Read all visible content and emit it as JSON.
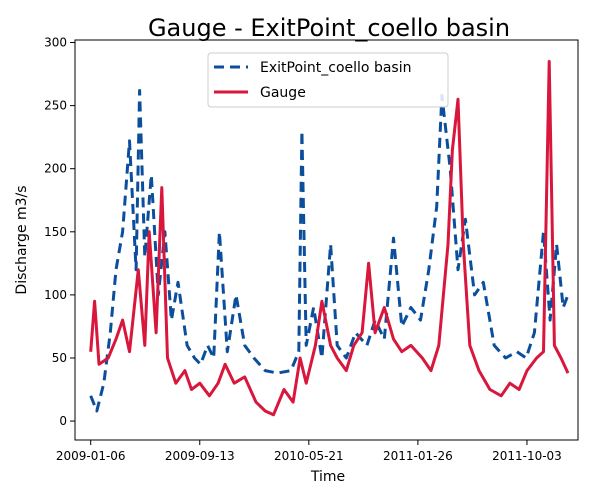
{
  "chart_data": {
    "type": "line",
    "title": "Gauge - ExitPoint_coello basin",
    "xlabel": "Time",
    "ylabel": "Discharge m3/s",
    "xlim": [
      "2008-12-01",
      "2012-01-28"
    ],
    "ylim": [
      -15,
      302
    ],
    "x_ticks": [
      "2009-01-06",
      "2009-09-13",
      "2010-05-21",
      "2011-01-26",
      "2011-10-03"
    ],
    "y_ticks": [
      0,
      50,
      100,
      150,
      200,
      250,
      300
    ],
    "grid": false,
    "legend_position": "top-center",
    "series": [
      {
        "name": "ExitPoint_coello basin",
        "color": "#0b4f9c",
        "linestyle": "dashed",
        "points": [
          [
            "2009-01-06",
            20
          ],
          [
            "2009-01-20",
            8
          ],
          [
            "2009-02-05",
            30
          ],
          [
            "2009-02-20",
            70
          ],
          [
            "2009-03-05",
            120
          ],
          [
            "2009-03-20",
            150
          ],
          [
            "2009-04-05",
            222
          ],
          [
            "2009-04-20",
            120
          ],
          [
            "2009-04-28",
            262
          ],
          [
            "2009-05-10",
            130
          ],
          [
            "2009-05-25",
            195
          ],
          [
            "2009-06-10",
            100
          ],
          [
            "2009-06-25",
            150
          ],
          [
            "2009-07-10",
            80
          ],
          [
            "2009-07-25",
            110
          ],
          [
            "2009-08-15",
            60
          ],
          [
            "2009-09-01",
            50
          ],
          [
            "2009-09-15",
            45
          ],
          [
            "2009-10-01",
            60
          ],
          [
            "2009-10-15",
            50
          ],
          [
            "2009-10-28",
            150
          ],
          [
            "2009-11-15",
            55
          ],
          [
            "2009-12-05",
            100
          ],
          [
            "2009-12-25",
            60
          ],
          [
            "2010-01-15",
            50
          ],
          [
            "2010-02-10",
            40
          ],
          [
            "2010-03-10",
            38
          ],
          [
            "2010-04-10",
            40
          ],
          [
            "2010-04-28",
            55
          ],
          [
            "2010-05-05",
            230
          ],
          [
            "2010-05-15",
            60
          ],
          [
            "2010-06-01",
            90
          ],
          [
            "2010-06-20",
            50
          ],
          [
            "2010-07-10",
            140
          ],
          [
            "2010-07-25",
            60
          ],
          [
            "2010-08-15",
            50
          ],
          [
            "2010-09-05",
            70
          ],
          [
            "2010-10-01",
            60
          ],
          [
            "2010-10-20",
            80
          ],
          [
            "2010-11-10",
            65
          ],
          [
            "2010-12-01",
            145
          ],
          [
            "2010-12-20",
            75
          ],
          [
            "2011-01-10",
            90
          ],
          [
            "2011-02-01",
            80
          ],
          [
            "2011-02-20",
            120
          ],
          [
            "2011-03-10",
            170
          ],
          [
            "2011-03-22",
            258
          ],
          [
            "2011-04-10",
            200
          ],
          [
            "2011-04-28",
            120
          ],
          [
            "2011-05-15",
            160
          ],
          [
            "2011-06-05",
            100
          ],
          [
            "2011-06-25",
            110
          ],
          [
            "2011-07-20",
            60
          ],
          [
            "2011-08-15",
            50
          ],
          [
            "2011-09-10",
            55
          ],
          [
            "2011-10-01",
            50
          ],
          [
            "2011-10-20",
            70
          ],
          [
            "2011-11-10",
            150
          ],
          [
            "2011-11-25",
            80
          ],
          [
            "2011-12-10",
            140
          ],
          [
            "2011-12-25",
            90
          ],
          [
            "2012-01-05",
            100
          ]
        ]
      },
      {
        "name": "Gauge",
        "color": "#d9163b",
        "linestyle": "solid",
        "points": [
          [
            "2009-01-06",
            55
          ],
          [
            "2009-01-15",
            95
          ],
          [
            "2009-01-25",
            45
          ],
          [
            "2009-02-15",
            50
          ],
          [
            "2009-03-05",
            65
          ],
          [
            "2009-03-20",
            80
          ],
          [
            "2009-04-05",
            55
          ],
          [
            "2009-04-25",
            120
          ],
          [
            "2009-05-10",
            60
          ],
          [
            "2009-05-20",
            150
          ],
          [
            "2009-06-05",
            70
          ],
          [
            "2009-06-18",
            185
          ],
          [
            "2009-07-01",
            50
          ],
          [
            "2009-07-20",
            30
          ],
          [
            "2009-08-10",
            40
          ],
          [
            "2009-08-25",
            25
          ],
          [
            "2009-09-13",
            30
          ],
          [
            "2009-10-05",
            20
          ],
          [
            "2009-10-25",
            30
          ],
          [
            "2009-11-10",
            45
          ],
          [
            "2009-12-01",
            30
          ],
          [
            "2009-12-25",
            35
          ],
          [
            "2010-01-20",
            15
          ],
          [
            "2010-02-10",
            8
          ],
          [
            "2010-03-01",
            5
          ],
          [
            "2010-03-25",
            25
          ],
          [
            "2010-04-15",
            15
          ],
          [
            "2010-05-01",
            50
          ],
          [
            "2010-05-15",
            30
          ],
          [
            "2010-06-05",
            60
          ],
          [
            "2010-06-20",
            95
          ],
          [
            "2010-07-10",
            60
          ],
          [
            "2010-07-25",
            50
          ],
          [
            "2010-08-15",
            40
          ],
          [
            "2010-09-01",
            60
          ],
          [
            "2010-09-20",
            70
          ],
          [
            "2010-10-05",
            125
          ],
          [
            "2010-10-20",
            70
          ],
          [
            "2010-11-10",
            90
          ],
          [
            "2010-12-01",
            65
          ],
          [
            "2010-12-20",
            55
          ],
          [
            "2011-01-10",
            60
          ],
          [
            "2011-02-05",
            50
          ],
          [
            "2011-02-25",
            40
          ],
          [
            "2011-03-15",
            60
          ],
          [
            "2011-04-05",
            140
          ],
          [
            "2011-04-15",
            215
          ],
          [
            "2011-04-28",
            255
          ],
          [
            "2011-05-10",
            140
          ],
          [
            "2011-05-25",
            60
          ],
          [
            "2011-06-15",
            40
          ],
          [
            "2011-07-10",
            25
          ],
          [
            "2011-08-05",
            20
          ],
          [
            "2011-08-25",
            30
          ],
          [
            "2011-09-15",
            25
          ],
          [
            "2011-10-03",
            40
          ],
          [
            "2011-10-25",
            50
          ],
          [
            "2011-11-10",
            55
          ],
          [
            "2011-11-23",
            285
          ],
          [
            "2011-12-05",
            60
          ],
          [
            "2011-12-20",
            50
          ],
          [
            "2012-01-05",
            38
          ]
        ]
      }
    ]
  }
}
